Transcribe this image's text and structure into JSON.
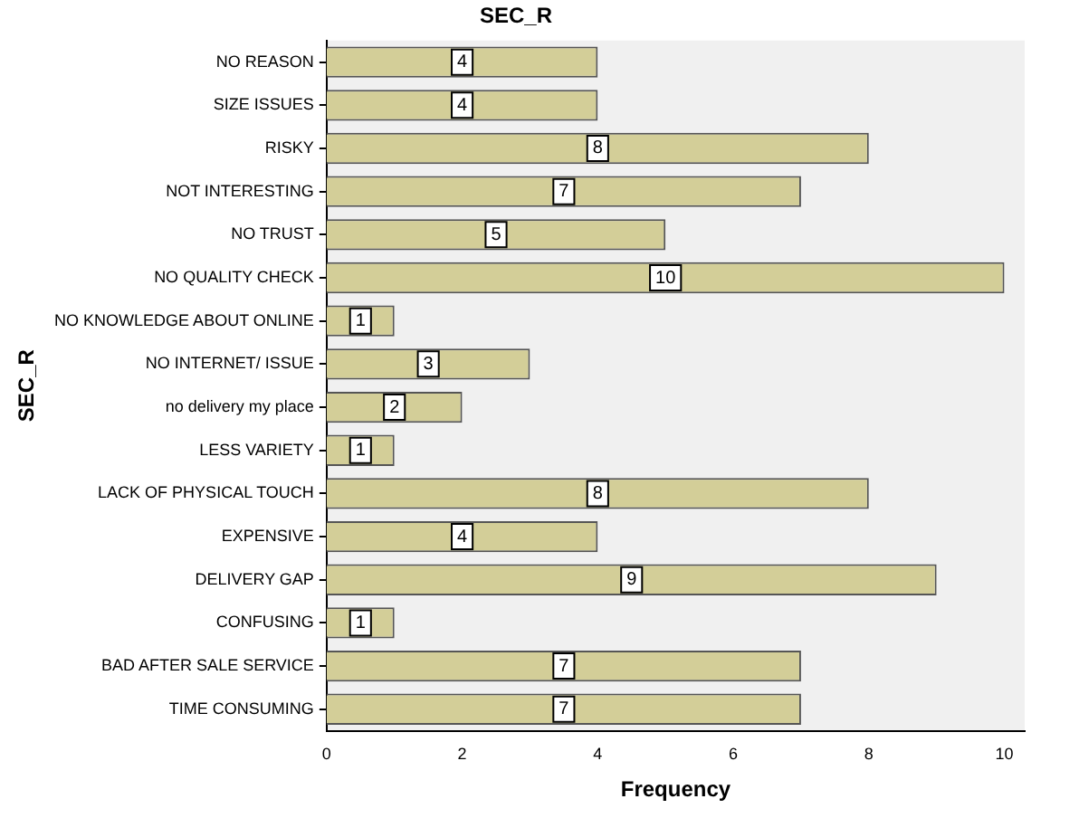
{
  "chart_data": {
    "type": "bar",
    "orientation": "horizontal",
    "title": "SEC_R",
    "xlabel": "Frequency",
    "ylabel": "SEC_R",
    "categories": [
      "NO REASON",
      "SIZE ISSUES",
      "RISKY",
      "NOT INTERESTING",
      "NO TRUST",
      "NO QUALITY CHECK",
      "NO KNOWLEDGE ABOUT ONLINE",
      "NO INTERNET/ ISSUE",
      "no delivery my place",
      "LESS VARIETY",
      "LACK OF PHYSICAL TOUCH",
      "EXPENSIVE",
      "DELIVERY GAP",
      "CONFUSING",
      "BAD AFTER SALE SERVICE",
      "TIME CONSUMING"
    ],
    "values": [
      4,
      4,
      8,
      7,
      5,
      10,
      1,
      3,
      2,
      1,
      8,
      4,
      9,
      1,
      7,
      7
    ],
    "color": "#d3ce98",
    "xlim": [
      0,
      10.3
    ],
    "xticks": [
      0,
      2,
      4,
      6,
      8,
      10
    ],
    "grid": false,
    "legend": false,
    "data_labels": true
  }
}
